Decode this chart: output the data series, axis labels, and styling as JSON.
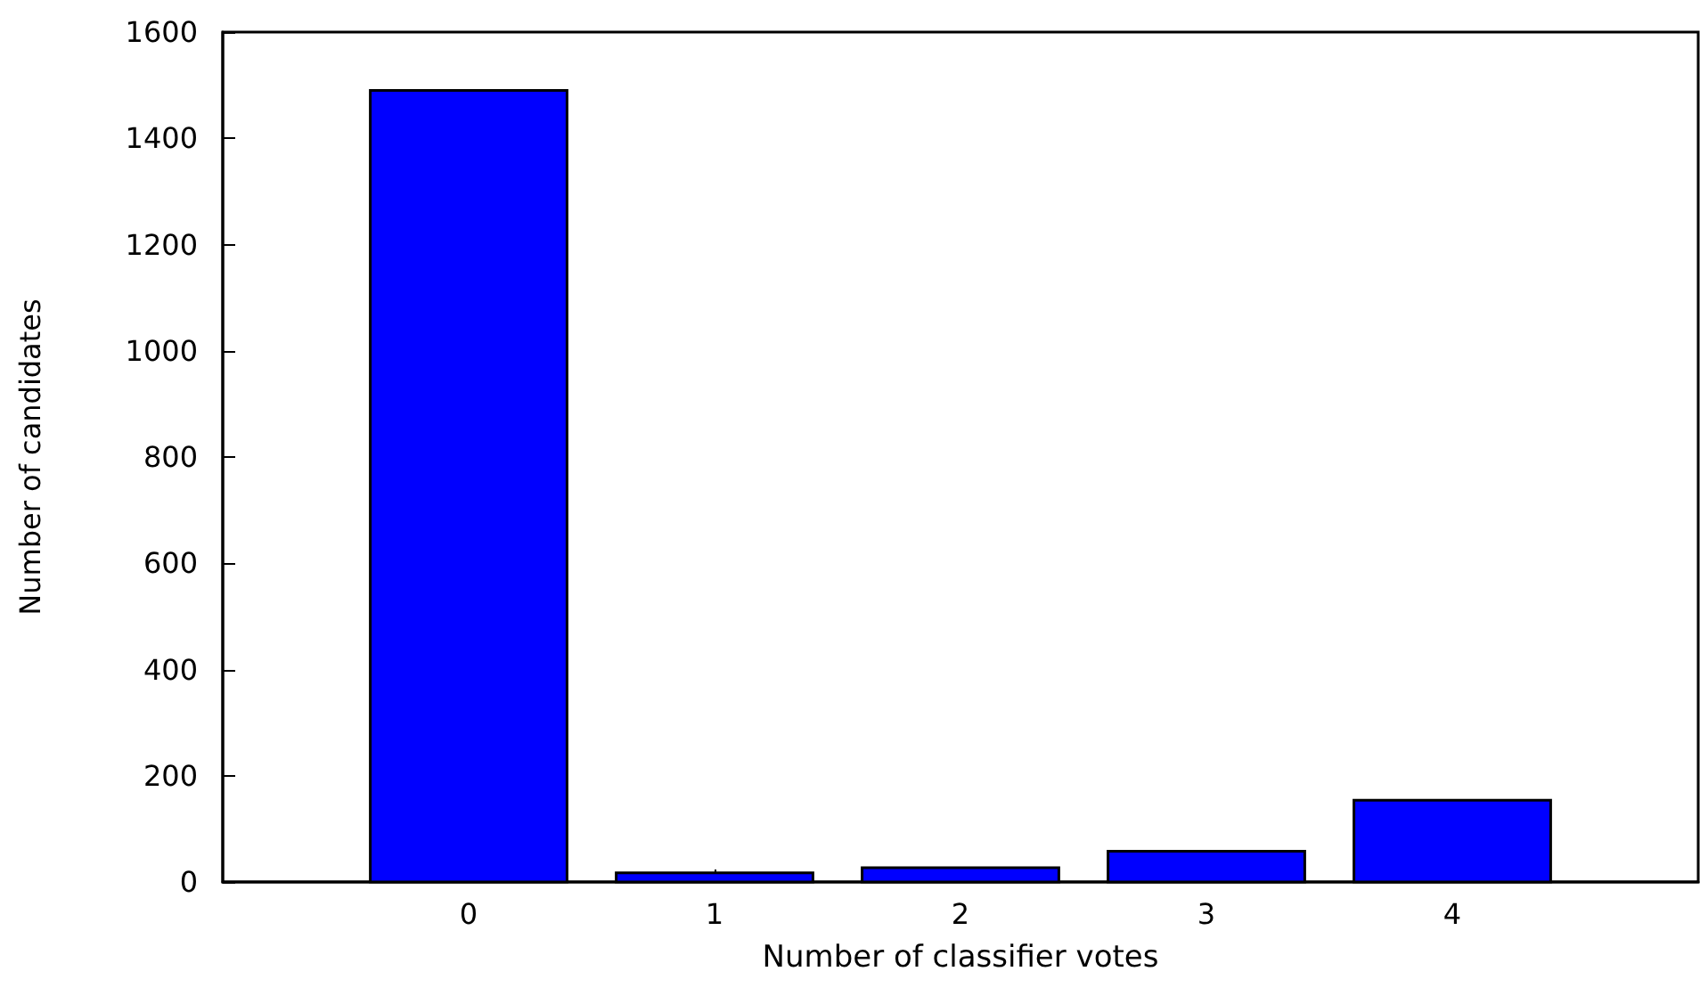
{
  "chart_data": {
    "type": "bar",
    "xlabel": "Number of classifier votes",
    "ylabel": "Number of candidates",
    "x": [
      0,
      1,
      2,
      3,
      4
    ],
    "values": [
      1490,
      17,
      27,
      58,
      154
    ],
    "color": "#0000ff",
    "xlim": [
      -1,
      5
    ],
    "xticks": [
      0,
      1,
      2,
      3,
      4
    ],
    "ylim": [
      0,
      1600
    ],
    "yticks": [
      0,
      200,
      400,
      600,
      800,
      1000,
      1200,
      1400,
      1600
    ],
    "grid": false
  }
}
